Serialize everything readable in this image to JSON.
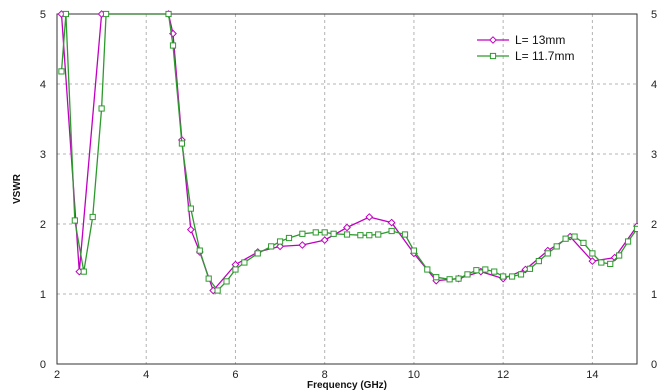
{
  "chart_data": {
    "type": "line",
    "title": "",
    "xlabel": "Frequency (GHz)",
    "ylabel": "VSWR",
    "xlim": [
      2,
      15
    ],
    "ylim": [
      0,
      5
    ],
    "xticks": [
      2,
      4,
      6,
      8,
      10,
      12,
      14
    ],
    "yticks": [
      0,
      1,
      2,
      3,
      4,
      5
    ],
    "grid": true,
    "legend_position": "top-right",
    "series": [
      {
        "name": "L= 13mm",
        "color": "#c000c0",
        "marker": "diamond",
        "points": [
          [
            2.1,
            5.0
          ],
          [
            2.5,
            1.32
          ],
          [
            3.0,
            5.0
          ],
          [
            4.5,
            5.0
          ],
          [
            4.6,
            4.72
          ],
          [
            4.8,
            3.2
          ],
          [
            5.0,
            1.92
          ],
          [
            5.2,
            1.6
          ],
          [
            5.5,
            1.05
          ],
          [
            6.0,
            1.42
          ],
          [
            6.5,
            1.6
          ],
          [
            7.0,
            1.68
          ],
          [
            7.5,
            1.7
          ],
          [
            8.0,
            1.77
          ],
          [
            8.5,
            1.95
          ],
          [
            9.0,
            2.1
          ],
          [
            9.5,
            2.02
          ],
          [
            10.0,
            1.58
          ],
          [
            10.5,
            1.19
          ],
          [
            11.0,
            1.22
          ],
          [
            11.5,
            1.32
          ],
          [
            12.0,
            1.22
          ],
          [
            12.5,
            1.35
          ],
          [
            13.0,
            1.62
          ],
          [
            13.5,
            1.82
          ],
          [
            14.0,
            1.47
          ],
          [
            14.5,
            1.52
          ],
          [
            15.0,
            1.97
          ]
        ]
      },
      {
        "name": "L= 11.7mm",
        "color": "#2e9a2e",
        "marker": "square",
        "points": [
          [
            2.1,
            4.18
          ],
          [
            2.2,
            5.0
          ],
          [
            2.4,
            2.05
          ],
          [
            2.6,
            1.32
          ],
          [
            2.8,
            2.1
          ],
          [
            3.0,
            3.65
          ],
          [
            3.1,
            5.0
          ],
          [
            4.5,
            5.0
          ],
          [
            4.6,
            4.55
          ],
          [
            4.8,
            3.15
          ],
          [
            5.0,
            2.22
          ],
          [
            5.2,
            1.62
          ],
          [
            5.4,
            1.22
          ],
          [
            5.6,
            1.05
          ],
          [
            5.8,
            1.18
          ],
          [
            6.0,
            1.35
          ],
          [
            6.2,
            1.45
          ],
          [
            6.5,
            1.58
          ],
          [
            6.8,
            1.68
          ],
          [
            7.0,
            1.75
          ],
          [
            7.2,
            1.8
          ],
          [
            7.5,
            1.86
          ],
          [
            7.8,
            1.88
          ],
          [
            8.0,
            1.88
          ],
          [
            8.2,
            1.86
          ],
          [
            8.5,
            1.85
          ],
          [
            8.8,
            1.84
          ],
          [
            9.0,
            1.84
          ],
          [
            9.2,
            1.85
          ],
          [
            9.5,
            1.9
          ],
          [
            9.8,
            1.85
          ],
          [
            10.0,
            1.62
          ],
          [
            10.3,
            1.35
          ],
          [
            10.5,
            1.24
          ],
          [
            10.8,
            1.21
          ],
          [
            11.0,
            1.22
          ],
          [
            11.2,
            1.28
          ],
          [
            11.4,
            1.34
          ],
          [
            11.6,
            1.35
          ],
          [
            11.8,
            1.32
          ],
          [
            12.0,
            1.25
          ],
          [
            12.2,
            1.25
          ],
          [
            12.4,
            1.28
          ],
          [
            12.6,
            1.36
          ],
          [
            12.8,
            1.47
          ],
          [
            13.0,
            1.58
          ],
          [
            13.2,
            1.68
          ],
          [
            13.4,
            1.79
          ],
          [
            13.6,
            1.82
          ],
          [
            13.8,
            1.73
          ],
          [
            14.0,
            1.58
          ],
          [
            14.2,
            1.45
          ],
          [
            14.4,
            1.43
          ],
          [
            14.6,
            1.55
          ],
          [
            14.8,
            1.75
          ],
          [
            15.0,
            1.93
          ]
        ]
      }
    ]
  }
}
